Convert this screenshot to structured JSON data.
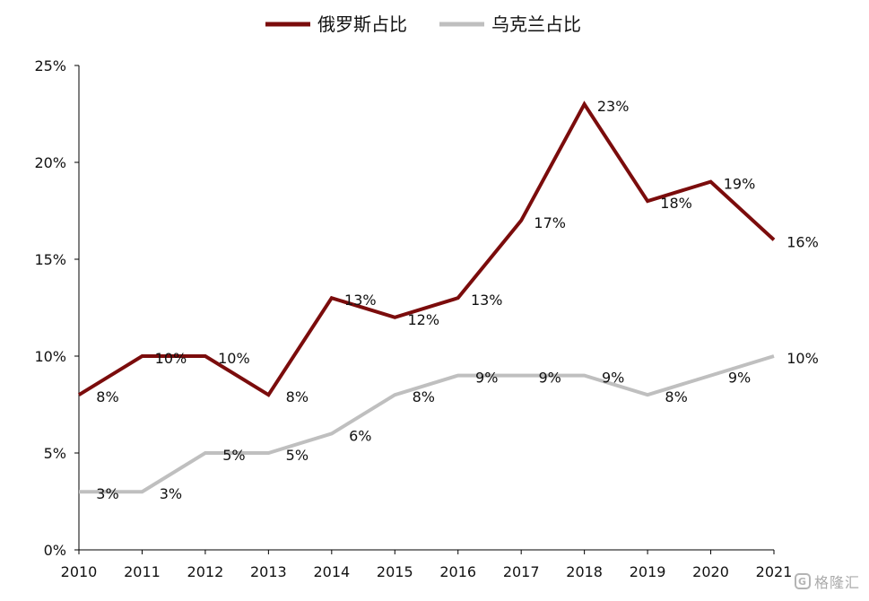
{
  "chart_data": {
    "type": "line",
    "title": "",
    "xlabel": "",
    "ylabel": "",
    "categories": [
      "2010",
      "2011",
      "2012",
      "2013",
      "2014",
      "2015",
      "2016",
      "2017",
      "2018",
      "2019",
      "2020",
      "2021"
    ],
    "ylim": [
      0,
      25
    ],
    "yticks": [
      0,
      5,
      10,
      15,
      20,
      25
    ],
    "ytick_labels": [
      "0%",
      "5%",
      "10%",
      "15%",
      "20%",
      "25%"
    ],
    "grid": false,
    "legend_position": "top-center",
    "series": [
      {
        "name": "俄罗斯占比",
        "color": "#7B0C0C",
        "values": [
          8,
          10,
          10,
          8,
          13,
          12,
          13,
          17,
          23,
          18,
          19,
          16
        ],
        "labels": [
          "8%",
          "10%",
          "10%",
          "8%",
          "13%",
          "12%",
          "13%",
          "17%",
          "23%",
          "18%",
          "19%",
          "16%"
        ]
      },
      {
        "name": "乌克兰占比",
        "color": "#BFBFBF",
        "values": [
          3,
          3,
          5,
          5,
          6,
          8,
          9,
          9,
          9,
          8,
          9,
          10
        ],
        "labels": [
          "3%",
          "3%",
          "5%",
          "5%",
          "6%",
          "8%",
          "9%",
          "9%",
          "9%",
          "8%",
          "9%",
          "10%"
        ]
      }
    ]
  },
  "watermark": {
    "icon": "G",
    "text": "格隆汇"
  }
}
